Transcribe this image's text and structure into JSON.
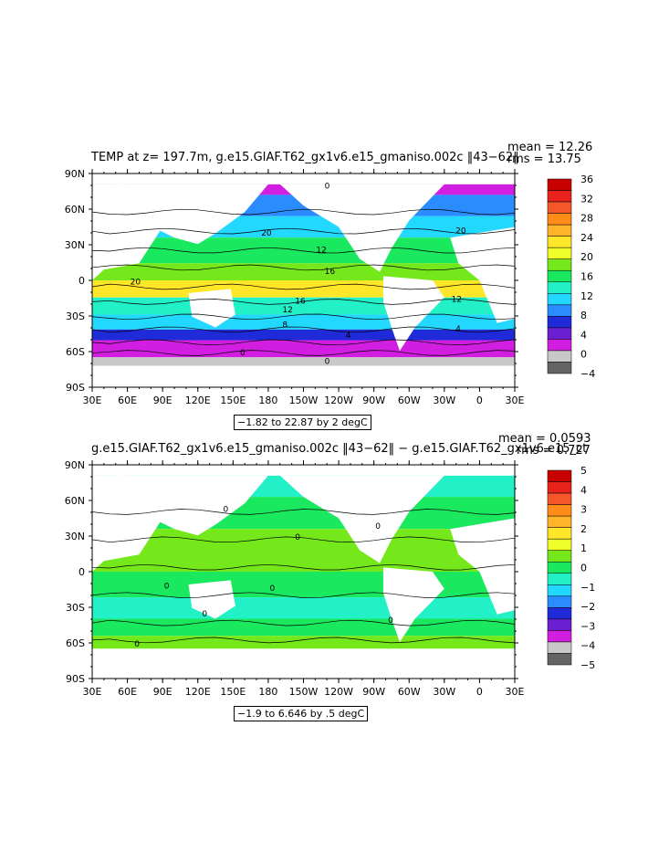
{
  "panels": [
    {
      "title": "TEMP at z=  197.7m, g.e15.GIAF.T62_gx1v6.e15_gmaniso.002c  ​43−62​",
      "title_display": "TEMP at z=  197.7m, g.e15.GIAF.T62_gx1v6.e15_gmaniso.002c  ‖43−62‖",
      "mean_text": "mean = 12.26",
      "rms_text": "rms = 13.75",
      "contour_info": "−1.82 to 22.87 by 2 degC",
      "colorbar_labels": [
        "36",
        "32",
        "28",
        "24",
        "20",
        "16",
        "12",
        "8",
        "4",
        "0",
        "−4"
      ],
      "colorbar_colors": [
        "#c80000",
        "#e8231c",
        "#f5572a",
        "#ff8c19",
        "#ffb429",
        "#ffe629",
        "#f0ff29",
        "#74e81a",
        "#1ae85e",
        "#22f0c6",
        "#22d8ff",
        "#2a8cff",
        "#1f2bd8",
        "#6a1fd0",
        "#d21ee0",
        "#c8c8c8",
        "#646464"
      ],
      "contour_labels": [
        "20",
        "20",
        "20",
        "16",
        "16",
        "12",
        "12",
        "12",
        "8",
        "4",
        "4",
        "0",
        "0",
        "0"
      ]
    },
    {
      "title_display": "g.e15.GIAF.T62_gx1v6.e15_gmaniso.002c  ‖43−62‖  − g.e15.GIAF.T62_gx1v6.e15_ct",
      "mean_text": "mean = 0.0593",
      "rms_text": "rms = 0.727",
      "contour_info": "−1.9 to 6.646 by .5 degC",
      "colorbar_labels": [
        "5",
        "4",
        "3",
        "2",
        "1",
        "0",
        "−1",
        "−2",
        "−3",
        "−4",
        "−5"
      ],
      "colorbar_colors": [
        "#c80000",
        "#e8231c",
        "#f5572a",
        "#ff8c19",
        "#ffb429",
        "#ffe629",
        "#f0ff29",
        "#74e81a",
        "#1ae85e",
        "#22f0c6",
        "#22d8ff",
        "#2a8cff",
        "#1f2bd8",
        "#6a1fd0",
        "#d21ee0",
        "#c8c8c8",
        "#646464"
      ],
      "contour_labels": [
        "0",
        "0",
        "0",
        "0",
        "0",
        "0",
        "0",
        "0"
      ]
    }
  ],
  "axes": {
    "lat_labels": [
      "90N",
      "60N",
      "30N",
      "0",
      "30S",
      "60S",
      "90S"
    ],
    "lon_labels": [
      "30E",
      "60E",
      "90E",
      "120E",
      "150E",
      "180",
      "150W",
      "120W",
      "90W",
      "60W",
      "30W",
      "0",
      "30E"
    ]
  }
}
